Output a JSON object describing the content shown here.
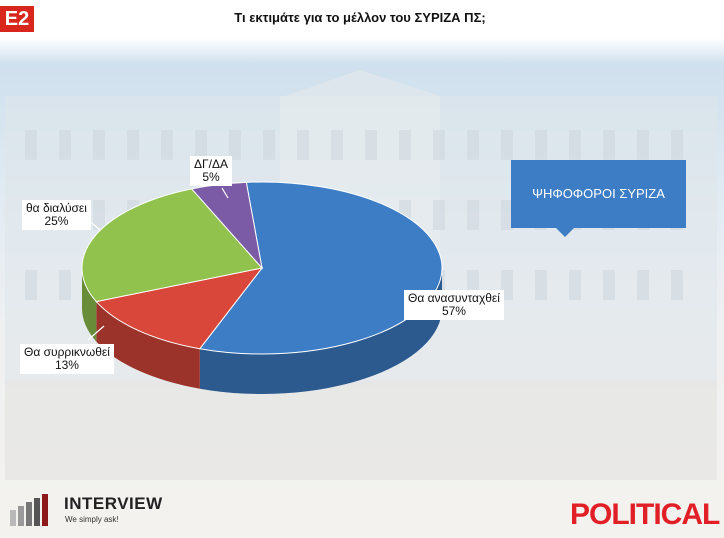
{
  "badge": "Ε2",
  "title": "Τι εκτιμάτε για το μέλλον του ΣΥΡΙΖΑ ΠΣ;",
  "callout": "ΨΗΦΟΦΟΡΟΙ ΣΥΡΙΖΑ",
  "logos": {
    "interview_name": "INTERVIEW",
    "interview_tagline": "We simply ask!",
    "political": "POLITICAL"
  },
  "colors": {
    "blue": "#3d7dc6",
    "red": "#d9473a",
    "green": "#92c24e",
    "purple": "#7b5aa6"
  },
  "chart_data": {
    "type": "pie",
    "title": "Τι εκτιμάτε για το μέλλον του ΣΥΡΙΖΑ ΠΣ;",
    "legend": "none",
    "slices": [
      {
        "label": "Θα ανασυνταχθεί",
        "value": 57,
        "value_label": "57%",
        "color": "#3d7dc6"
      },
      {
        "label": "Θα συρρικνωθεί",
        "value": 13,
        "value_label": "13%",
        "color": "#d9473a"
      },
      {
        "label": "θα διαλύσει",
        "value": 25,
        "value_label": "25%",
        "color": "#92c24e"
      },
      {
        "label": "ΔΓ/ΔΑ",
        "value": 5,
        "value_label": "5%",
        "color": "#7b5aa6"
      }
    ]
  }
}
